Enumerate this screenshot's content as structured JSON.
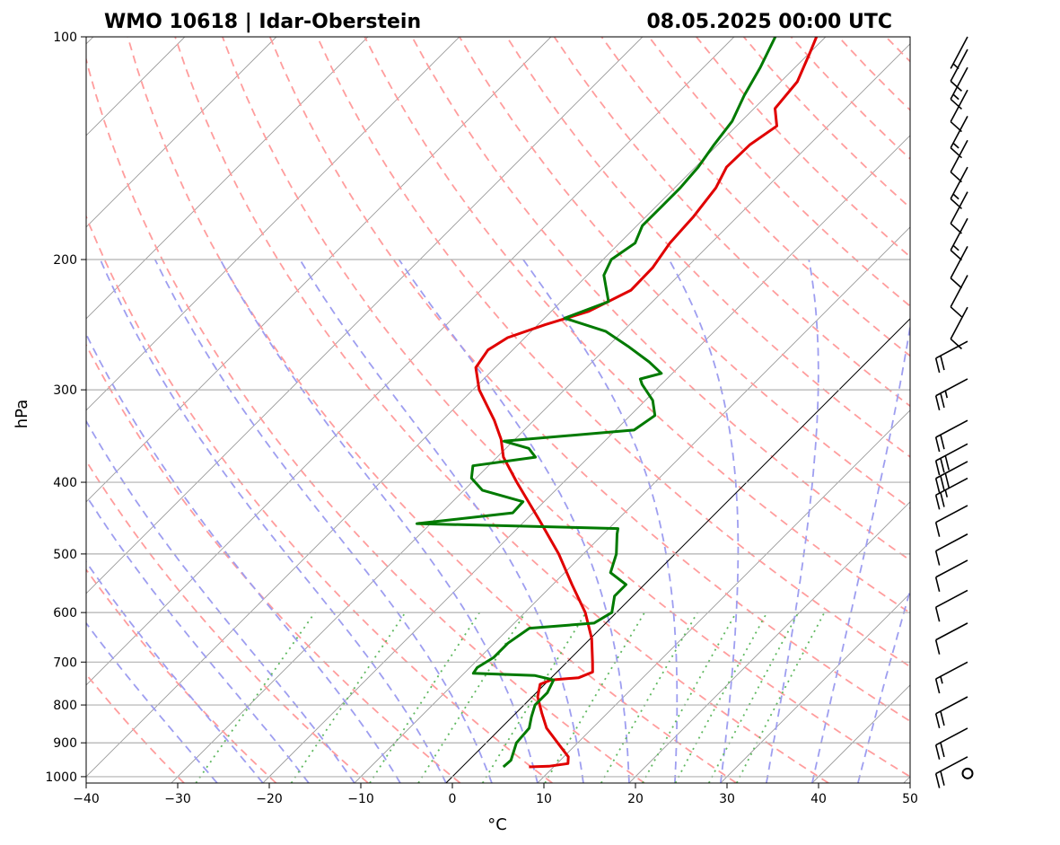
{
  "chart_data": {
    "type": "line",
    "subtype": "skew-t log-p diagram",
    "title_left": "WMO 10618 | Idar-Oberstein",
    "title_right": "08.05.2025 00:00 UTC",
    "xlabel": "°C",
    "ylabel": "hPa",
    "xlim": [
      -40,
      50
    ],
    "ylim": [
      1020,
      100
    ],
    "y_scale": "log",
    "x_ticks": [
      -40,
      -30,
      -20,
      -10,
      0,
      10,
      20,
      30,
      40,
      50
    ],
    "x_tick_labels": [
      "−40",
      "−30",
      "−20",
      "−10",
      "0",
      "10",
      "20",
      "30",
      "40",
      "50"
    ],
    "y_ticks": [
      1000,
      900,
      800,
      700,
      600,
      500,
      400,
      300,
      200,
      100
    ],
    "y_tick_labels": [
      "1000",
      "900",
      "800",
      "700",
      "600",
      "500",
      "400",
      "300",
      "200",
      "100"
    ],
    "grid": true,
    "background_lines": {
      "isotherms": "thin gray skewed",
      "dry_adiabats": "dashed light red",
      "moist_adiabats": "dashed light blue",
      "mixing_ratio": "dotted green",
      "zero_isotherm": "solid black"
    },
    "colors": {
      "temperature": "#e00000",
      "dewpoint": "#007a00",
      "isotherm": "#9a9a9a",
      "dry_adiabat": "#ff9d9d",
      "moist_adiabat": "#9e9ef0",
      "mixing_ratio": "#5fb85f",
      "grid": "#b0b0b0"
    },
    "series": [
      {
        "key": "temperature",
        "points": [
          [
            970,
            7.3
          ],
          [
            968,
            9.4
          ],
          [
            960,
            11.2
          ],
          [
            940,
            10.5
          ],
          [
            900,
            7.8
          ],
          [
            860,
            5.0
          ],
          [
            820,
            2.8
          ],
          [
            780,
            0.6
          ],
          [
            750,
            -0.5
          ],
          [
            740,
            0.2
          ],
          [
            735,
            3.0
          ],
          [
            722,
            3.9
          ],
          [
            700,
            2.8
          ],
          [
            650,
            0.1
          ],
          [
            600,
            -3.4
          ],
          [
            550,
            -7.9
          ],
          [
            500,
            -12.7
          ],
          [
            450,
            -18.5
          ],
          [
            400,
            -25.1
          ],
          [
            370,
            -29.3
          ],
          [
            350,
            -31.5
          ],
          [
            330,
            -34.3
          ],
          [
            300,
            -39.3
          ],
          [
            280,
            -42.1
          ],
          [
            265,
            -42.7
          ],
          [
            255,
            -41.9
          ],
          [
            245,
            -39.2
          ],
          [
            235,
            -35.9
          ],
          [
            220,
            -33.6
          ],
          [
            205,
            -33.7
          ],
          [
            190,
            -34.5
          ],
          [
            175,
            -34.8
          ],
          [
            160,
            -35.5
          ],
          [
            150,
            -36.6
          ],
          [
            140,
            -36.5
          ],
          [
            132,
            -35.6
          ],
          [
            125,
            -37.7
          ],
          [
            115,
            -38.2
          ],
          [
            105,
            -40.0
          ],
          [
            100,
            -41.0
          ]
        ]
      },
      {
        "key": "dewpoint",
        "points": [
          [
            970,
            4.5
          ],
          [
            950,
            4.6
          ],
          [
            900,
            3.3
          ],
          [
            860,
            3.1
          ],
          [
            830,
            2.1
          ],
          [
            800,
            1.2
          ],
          [
            770,
            1.2
          ],
          [
            740,
            0.5
          ],
          [
            730,
            -2.0
          ],
          [
            725,
            -9.0
          ],
          [
            712,
            -9.2
          ],
          [
            690,
            -8.5
          ],
          [
            660,
            -8.5
          ],
          [
            630,
            -7.8
          ],
          [
            620,
            -1.3
          ],
          [
            600,
            -0.5
          ],
          [
            570,
            -2.0
          ],
          [
            550,
            -2.0
          ],
          [
            530,
            -5.0
          ],
          [
            500,
            -6.4
          ],
          [
            470,
            -8.5
          ],
          [
            462,
            -9.0
          ],
          [
            455,
            -31.5
          ],
          [
            440,
            -22.2
          ],
          [
            425,
            -22.3
          ],
          [
            410,
            -28.0
          ],
          [
            395,
            -30.5
          ],
          [
            380,
            -31.7
          ],
          [
            370,
            -25.8
          ],
          [
            360,
            -27.5
          ],
          [
            352,
            -31.0
          ],
          [
            340,
            -18.0
          ],
          [
            325,
            -17.3
          ],
          [
            310,
            -19.2
          ],
          [
            295,
            -22.1
          ],
          [
            290,
            -22.9
          ],
          [
            285,
            -21.2
          ],
          [
            275,
            -23.8
          ],
          [
            262,
            -27.8
          ],
          [
            250,
            -31.9
          ],
          [
            240,
            -37.8
          ],
          [
            228,
            -34.8
          ],
          [
            210,
            -38.2
          ],
          [
            200,
            -39.1
          ],
          [
            190,
            -38.3
          ],
          [
            180,
            -39.4
          ],
          [
            170,
            -39.4
          ],
          [
            160,
            -39.4
          ],
          [
            150,
            -39.7
          ],
          [
            140,
            -40.4
          ],
          [
            130,
            -41.0
          ],
          [
            120,
            -42.5
          ],
          [
            110,
            -43.8
          ],
          [
            100,
            -45.5
          ]
        ]
      }
    ],
    "wind_barbs": [
      {
        "pressure": 100,
        "speed_kt": 5
      },
      {
        "pressure": 104,
        "speed_kt": 10
      },
      {
        "pressure": 110,
        "speed_kt": 15
      },
      {
        "pressure": 118,
        "speed_kt": 10
      },
      {
        "pressure": 128,
        "speed_kt": 15
      },
      {
        "pressure": 138,
        "speed_kt": 10
      },
      {
        "pressure": 150,
        "speed_kt": 15
      },
      {
        "pressure": 162,
        "speed_kt": 10
      },
      {
        "pressure": 176,
        "speed_kt": 15
      },
      {
        "pressure": 192,
        "speed_kt": 10
      },
      {
        "pressure": 210,
        "speed_kt": 10
      },
      {
        "pressure": 232,
        "speed_kt": 10
      },
      {
        "pressure": 258,
        "speed_kt": 20
      },
      {
        "pressure": 290,
        "speed_kt": 25
      },
      {
        "pressure": 330,
        "speed_kt": 20
      },
      {
        "pressure": 355,
        "speed_kt": 30
      },
      {
        "pressure": 375,
        "speed_kt": 30
      },
      {
        "pressure": 395,
        "speed_kt": 25
      },
      {
        "pressure": 430,
        "speed_kt": 10
      },
      {
        "pressure": 470,
        "speed_kt": 10
      },
      {
        "pressure": 510,
        "speed_kt": 10
      },
      {
        "pressure": 560,
        "speed_kt": 10
      },
      {
        "pressure": 620,
        "speed_kt": 10
      },
      {
        "pressure": 700,
        "speed_kt": 15
      },
      {
        "pressure": 780,
        "speed_kt": 20
      },
      {
        "pressure": 860,
        "speed_kt": 20
      },
      {
        "pressure": 940,
        "speed_kt": 20
      },
      {
        "pressure": 990,
        "speed_kt": 0
      }
    ]
  }
}
